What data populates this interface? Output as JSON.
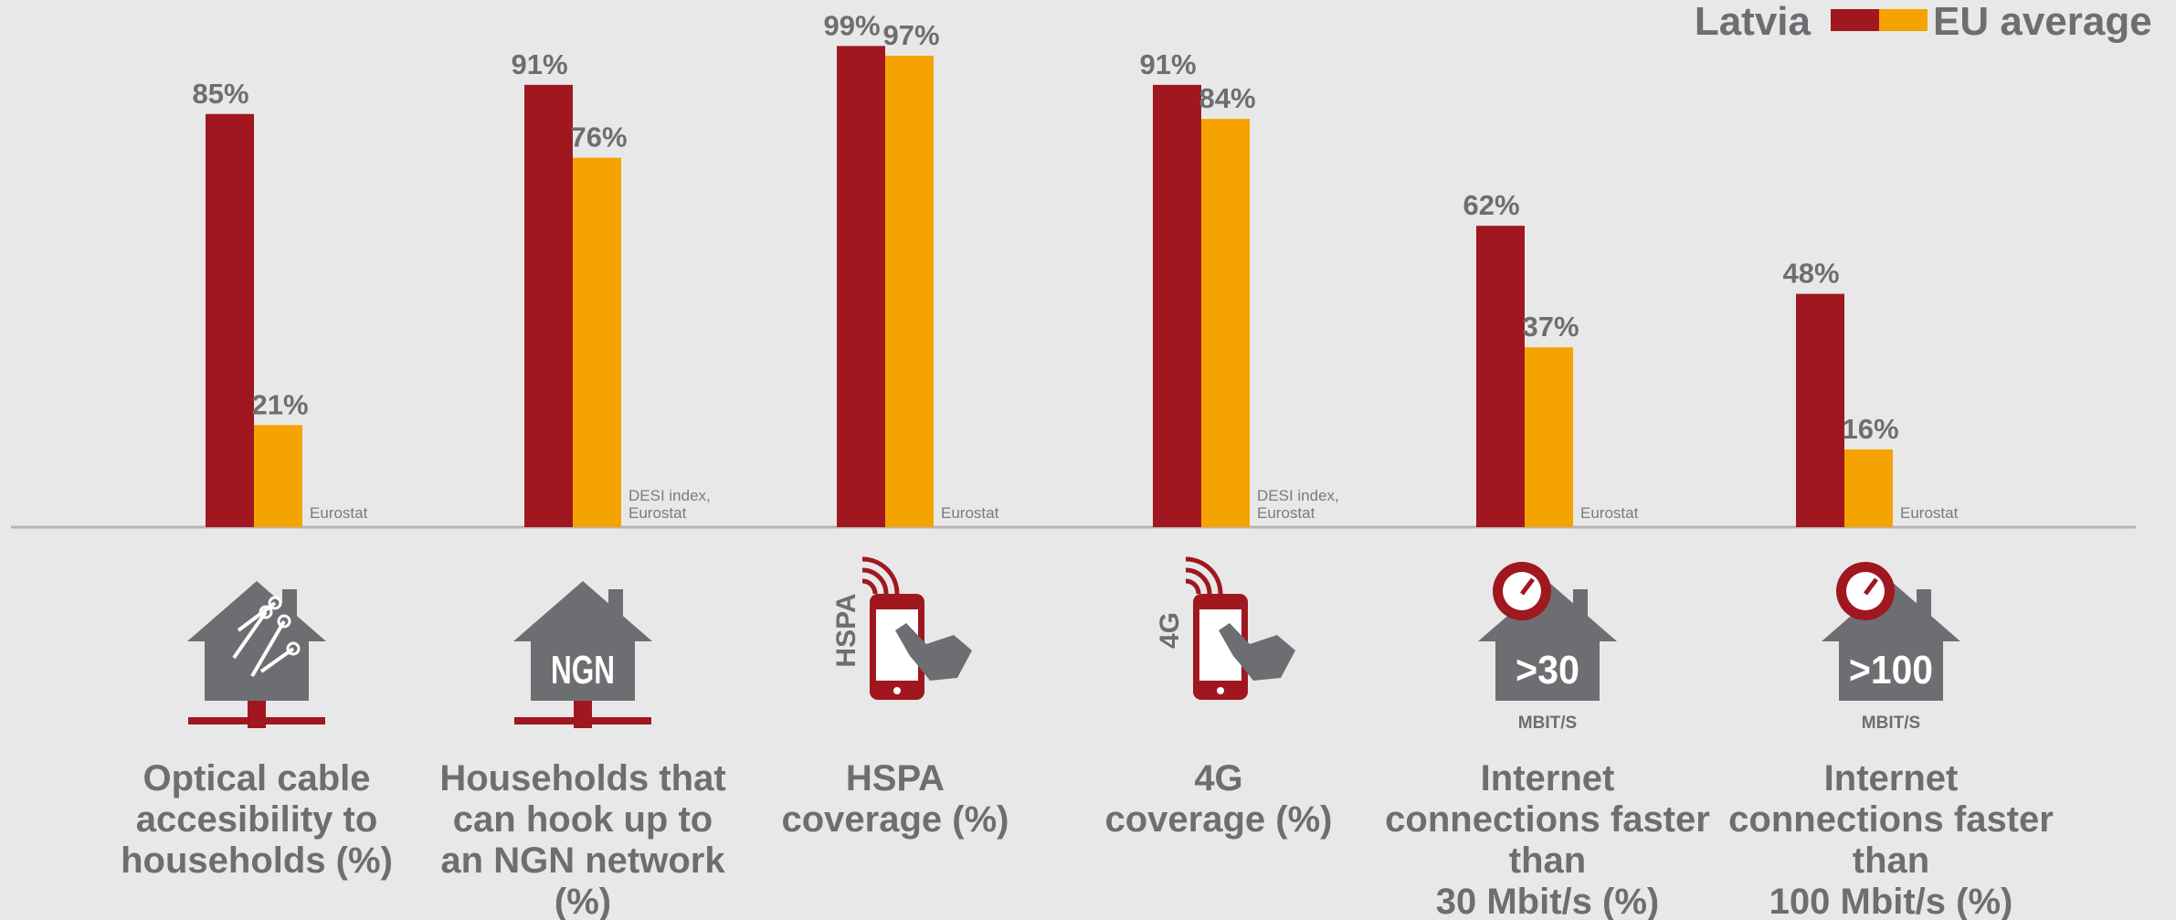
{
  "chart_data": {
    "type": "bar",
    "legend": "top-right",
    "categories": [
      "Optical cable\naccesibility to\nhouseholds (%)",
      "Households that\ncan hook up to\nan NGN network\n(%)",
      "HSPA\ncoverage (%)",
      "4G\ncoverage (%)",
      "Internet\nconnections faster\nthan\n30 Mbit/s (%)",
      "Internet\nconnections faster\nthan\n100 Mbit/s (%)"
    ],
    "series": [
      {
        "name": "Latvia",
        "color": "#a0171f",
        "values": [
          85,
          91,
          99,
          91,
          62,
          48
        ],
        "value_labels": [
          "85%",
          "91%",
          "99%",
          "91%",
          "62%",
          "48%"
        ]
      },
      {
        "name": "EU average",
        "color": "#f5a300",
        "values": [
          21,
          76,
          97,
          84,
          37,
          16
        ],
        "value_labels": [
          "21%",
          "76%",
          "97%",
          "84%",
          "37%",
          "16%"
        ]
      }
    ],
    "sources": [
      "Eurostat",
      "DESI index,\nEurostat",
      "Eurostat",
      "DESI index,\nEurostat",
      "Eurostat",
      "Eurostat"
    ],
    "icons": [
      {
        "shape": "house-network"
      },
      {
        "shape": "house-network",
        "text": "NGN"
      },
      {
        "shape": "phone",
        "text": "HSPA"
      },
      {
        "shape": "phone",
        "text": "4G"
      },
      {
        "shape": "house-gauge",
        "text": ">30",
        "subtext": "MBIT/S"
      },
      {
        "shape": "house-gauge",
        "text": ">100",
        "subtext": "MBIT/S"
      }
    ]
  }
}
